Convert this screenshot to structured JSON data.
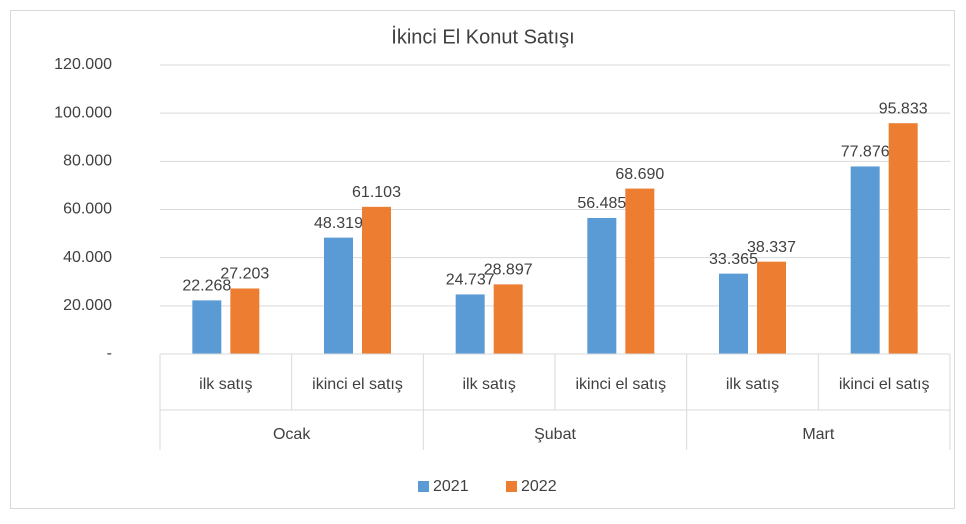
{
  "chart_data": {
    "type": "bar",
    "title": "İkinci El Konut Satışı",
    "categories": [
      "ilk satış",
      "ikinci el satış",
      "ilk satış",
      "ikinci el satış",
      "ilk satış",
      "ikinci el satış"
    ],
    "groups": [
      "Ocak",
      "Şubat",
      "Mart"
    ],
    "series": [
      {
        "name": "2021",
        "color": "#5b9bd5",
        "values": [
          22268,
          48319,
          24737,
          56485,
          33365,
          77876
        ],
        "value_labels": [
          "22.268",
          "48.319",
          "24.737",
          "56.485",
          "33.365",
          "77.876"
        ]
      },
      {
        "name": "2022",
        "color": "#ed7d31",
        "values": [
          27203,
          61103,
          28897,
          68690,
          38337,
          95833
        ],
        "value_labels": [
          "27.203",
          "61.103",
          "28.897",
          "68.690",
          "38.337",
          "95.833"
        ]
      }
    ],
    "ylim": [
      0,
      120000
    ],
    "yticks": [
      {
        "value": 0,
        "label": "-"
      },
      {
        "value": 20000,
        "label": "20.000"
      },
      {
        "value": 40000,
        "label": "40.000"
      },
      {
        "value": 60000,
        "label": "60.000"
      },
      {
        "value": 80000,
        "label": "80.000"
      },
      {
        "value": 100000,
        "label": "100.000"
      },
      {
        "value": 120000,
        "label": "120.000"
      }
    ],
    "grid": true,
    "legend": "bottom"
  }
}
